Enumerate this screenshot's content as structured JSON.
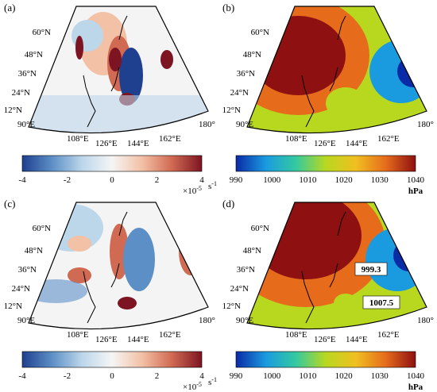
{
  "panels": [
    {
      "label": "(a)",
      "lat_labels": [
        "60°N",
        "48°N",
        "36°N",
        "24°N",
        "12°N"
      ],
      "lon_labels": [
        "90°E",
        "108°E",
        "126°E",
        "144°E",
        "162°E",
        "180°"
      ],
      "colorbar": {
        "ticks": [
          "-4",
          "-2",
          "0",
          "2",
          "4"
        ],
        "multiplier": "×10",
        "exponent": "-5",
        "unit": "s",
        "unit_exp": "-1",
        "colors": [
          "#1f3f8f",
          "#5d8fc7",
          "#bcd6ea",
          "#f5f5f5",
          "#f2c1a6",
          "#d06a52",
          "#7d1422"
        ]
      }
    },
    {
      "label": "(b)",
      "lat_labels": [
        "60°N",
        "48°N",
        "36°N",
        "24°N",
        "12°N"
      ],
      "lon_labels": [
        "90°E",
        "108°E",
        "126°E",
        "144°E",
        "162°E",
        "180°"
      ],
      "colorbar": {
        "ticks": [
          "990",
          "1000",
          "1010",
          "1020",
          "1030",
          "1040"
        ],
        "unit": "hPa",
        "colors": [
          "#0a2aa6",
          "#1a9be0",
          "#34c9a0",
          "#b8d820",
          "#f0c020",
          "#e66c1c",
          "#8e1010"
        ]
      }
    },
    {
      "label": "(c)",
      "lat_labels": [
        "60°N",
        "48°N",
        "36°N",
        "24°N",
        "12°N"
      ],
      "lon_labels": [
        "90°E",
        "108°E",
        "126°E",
        "144°E",
        "162°E",
        "180°"
      ],
      "colorbar": {
        "ticks": [
          "-4",
          "-2",
          "0",
          "2",
          "4"
        ],
        "multiplier": "×10",
        "exponent": "-5",
        "unit": "s",
        "unit_exp": "-1",
        "colors": [
          "#1f3f8f",
          "#5d8fc7",
          "#bcd6ea",
          "#f5f5f5",
          "#f2c1a6",
          "#d06a52",
          "#7d1422"
        ]
      }
    },
    {
      "label": "(d)",
      "lat_labels": [
        "60°N",
        "48°N",
        "36°N",
        "24°N",
        "12°N"
      ],
      "lon_labels": [
        "90°E",
        "108°E",
        "126°E",
        "144°E",
        "162°E",
        "180°"
      ],
      "callouts": [
        "999.3",
        "1007.5"
      ],
      "colorbar": {
        "ticks": [
          "990",
          "1000",
          "1010",
          "1020",
          "1030",
          "1040"
        ],
        "unit": "hPa",
        "colors": [
          "#0a2aa6",
          "#1a9be0",
          "#34c9a0",
          "#b8d820",
          "#f0c020",
          "#e66c1c",
          "#8e1010"
        ]
      }
    }
  ]
}
